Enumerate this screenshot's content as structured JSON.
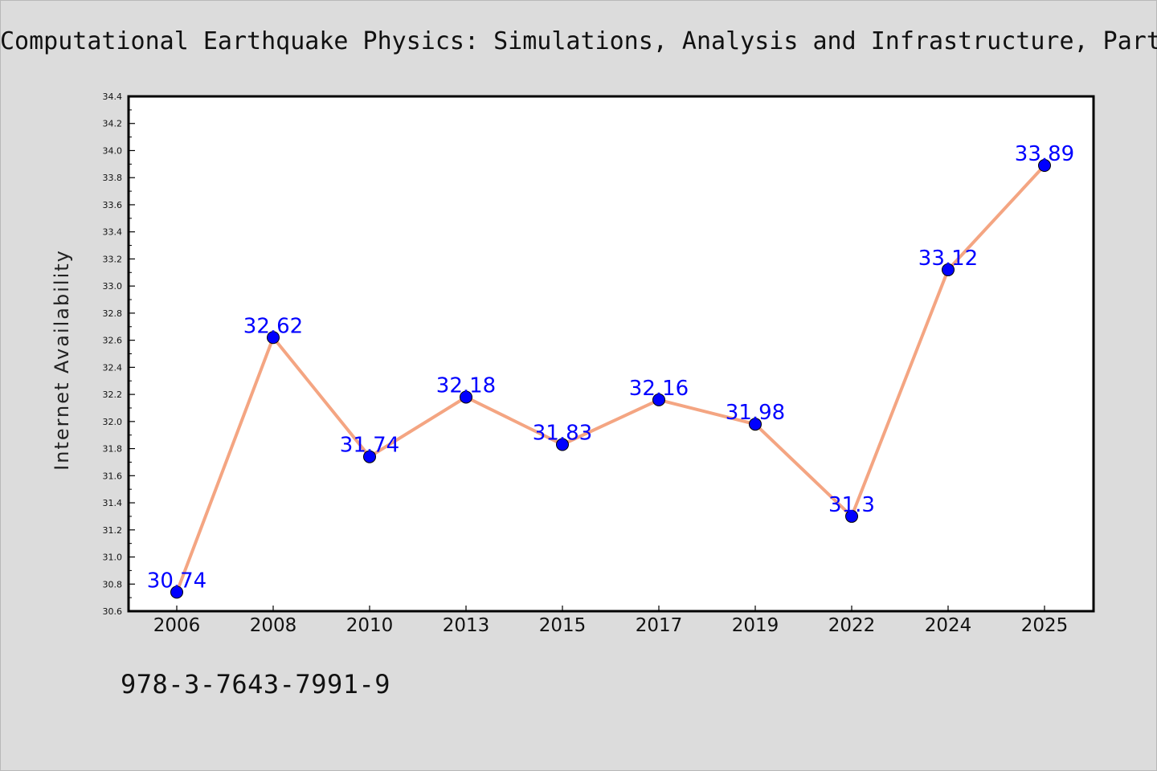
{
  "title": "Computational Earthquake Physics: Simulations, Analysis and Infrastructure, Part",
  "footer_text": "978-3-7643-7991-9",
  "chart_data": {
    "type": "line",
    "title": "Computational Earthquake Physics: Simulations, Analysis and Infrastructure, Part",
    "xlabel": "",
    "ylabel": "Internet Availability",
    "categories": [
      "2006",
      "2008",
      "2010",
      "2013",
      "2015",
      "2017",
      "2019",
      "2022",
      "2024",
      "2025"
    ],
    "values": [
      30.74,
      32.62,
      31.74,
      32.18,
      31.83,
      32.16,
      31.98,
      31.3,
      33.12,
      33.89
    ],
    "data_labels": [
      "30.74",
      "32.62",
      "31.74",
      "32.18",
      "31.83",
      "32.16",
      "31.98",
      "31.3",
      "33.12",
      "33.89"
    ],
    "ylim": [
      30.6,
      34.4
    ],
    "yticks": [
      "30.6",
      "30.8",
      "31.0",
      "31.2",
      "31.4",
      "31.6",
      "31.8",
      "32.0",
      "32.2",
      "32.4",
      "32.6",
      "32.8",
      "33.0",
      "33.2",
      "33.4",
      "33.6",
      "33.8",
      "34.0",
      "34.2",
      "34.4"
    ],
    "grid": false,
    "legend": "none",
    "colors": {
      "line": "#f4a582",
      "marker": "#0000ff",
      "label": "#0000ff",
      "plot_background": "#ffffff",
      "page_background": "#dcdcdc"
    }
  }
}
